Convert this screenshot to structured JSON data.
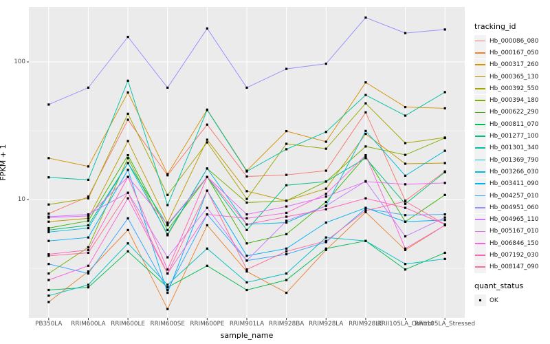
{
  "axes": {
    "y_title": "FPKM + 1",
    "x_title": "sample_name",
    "y_tick_labels": [
      "100",
      "10"
    ]
  },
  "legend": {
    "tracking_title": "tracking_id",
    "quant_title": "quant_status",
    "quant_label": "OK"
  },
  "colors": {
    "panel_background": "#EBEBEB",
    "gridline": "#FFFFFF",
    "axis_text": "#4D4D4D",
    "point": "#000000",
    "legend_key_background": "#F2F2F2"
  },
  "chart_data": {
    "type": "line",
    "title": "",
    "xlabel": "sample_name",
    "ylabel": "FPKM + 1",
    "y_scale": "log10",
    "ylim": [
      1.38,
      251
    ],
    "y_major_gridlines": [
      10,
      100
    ],
    "y_minor_gridlines": [
      3.162,
      31.62
    ],
    "y_ticks": [
      100,
      10
    ],
    "grid": true,
    "legend_position": "right",
    "marker": "black-square",
    "quant_status": "OK",
    "categories": [
      "PB350LA",
      "RRIM600LA",
      "RRIM600LE",
      "RRIM600SE",
      "RRIM600PE",
      "RRIM901LA",
      "RRIM928BA",
      "RRIM928LA",
      "RRIM928LE",
      "RRII105LA_Control",
      "RRII105LA_Stressed"
    ],
    "series": [
      {
        "name": "Hb_000086_080",
        "color": "#F8766D",
        "values": [
          7.9,
          10.5,
          38,
          15,
          35,
          14.7,
          15.1,
          16.2,
          43,
          9.8,
          16
        ]
      },
      {
        "name": "Hb_000167_050",
        "color": "#EA8331",
        "values": [
          1.8,
          3.0,
          6.0,
          1.6,
          6.5,
          3.0,
          2.1,
          4.3,
          8.1,
          4.3,
          6.5
        ]
      },
      {
        "name": "Hb_000317_260",
        "color": "#D89000",
        "values": [
          20,
          17.4,
          60,
          15.3,
          45,
          16.2,
          31.4,
          26.3,
          71,
          47,
          46
        ]
      },
      {
        "name": "Hb_000365_130",
        "color": "#C09B00",
        "values": [
          6.9,
          7.3,
          26.6,
          6.8,
          27.2,
          11.5,
          9.8,
          12,
          30,
          18.2,
          18.4
        ]
      },
      {
        "name": "Hb_000392_550",
        "color": "#A3A500",
        "values": [
          9.2,
          10.2,
          42,
          10.8,
          26,
          10.1,
          25.4,
          23.4,
          50,
          25.7,
          28.2
        ]
      },
      {
        "name": "Hb_000394_180",
        "color": "#7CAE00",
        "values": [
          2.9,
          4.5,
          20,
          5.5,
          16.8,
          9.5,
          9.8,
          13.5,
          24.3,
          21.1,
          28
        ]
      },
      {
        "name": "Hb_000622_290",
        "color": "#39B600",
        "values": [
          6.2,
          7.0,
          21,
          6.0,
          14.6,
          4.8,
          5.6,
          9.6,
          20.7,
          6.9,
          10.8
        ]
      },
      {
        "name": "Hb_000811_070",
        "color": "#00BB4E",
        "values": [
          2.2,
          2.3,
          4.2,
          2.3,
          3.3,
          2.2,
          2.6,
          4.4,
          5.0,
          3.1,
          4.1
        ]
      },
      {
        "name": "Hb_001277_100",
        "color": "#00BF7D",
        "values": [
          6.0,
          6.5,
          18.4,
          6.5,
          14.6,
          6.0,
          12.7,
          13.5,
          20,
          9.3,
          15.8
        ]
      },
      {
        "name": "Hb_001301_340",
        "color": "#00C1A3",
        "values": [
          14.5,
          13.9,
          73,
          9.1,
          44.7,
          16,
          23.2,
          31,
          57.5,
          40.7,
          60.3
        ]
      },
      {
        "name": "Hb_001369_790",
        "color": "#00BFC4",
        "values": [
          2.0,
          2.4,
          4.8,
          2.4,
          4.4,
          2.5,
          2.9,
          5.3,
          5.0,
          3.4,
          3.7
        ]
      },
      {
        "name": "Hb_003266_030",
        "color": "#00BADE",
        "values": [
          5.8,
          6.2,
          18.4,
          5.6,
          16.8,
          6.6,
          6.8,
          9.0,
          31.5,
          14.9,
          22.6
        ]
      },
      {
        "name": "Hb_003411_090",
        "color": "#00B0F6",
        "values": [
          5.0,
          5.3,
          16.4,
          2.1,
          11.6,
          3.9,
          4.4,
          6.8,
          8.7,
          6.9,
          7.1
        ]
      },
      {
        "name": "Hb_004257_010",
        "color": "#35A2FF",
        "values": [
          3.4,
          2.9,
          7.3,
          2.2,
          7.8,
          3.6,
          4.0,
          4.9,
          8.6,
          7.7,
          7.8
        ]
      },
      {
        "name": "Hb_004951_060",
        "color": "#9590FF",
        "values": [
          49,
          65,
          152,
          65,
          175,
          65,
          89,
          97,
          210,
          162,
          172
        ]
      },
      {
        "name": "Hb_004965_110",
        "color": "#C77CFF",
        "values": [
          7.5,
          7.8,
          11.2,
          3.8,
          8.7,
          3.6,
          7.0,
          9.0,
          13.6,
          5.4,
          7.4
        ]
      },
      {
        "name": "Hb_005167_010",
        "color": "#E76BF3",
        "values": [
          7.4,
          7.6,
          14.6,
          6.6,
          14.6,
          7.8,
          8.9,
          10.5,
          13.5,
          12.9,
          13.2
        ]
      },
      {
        "name": "Hb_006846_150",
        "color": "#FA62DB",
        "values": [
          2.6,
          3.3,
          10.2,
          2.9,
          7.8,
          7.3,
          8.0,
          11,
          21,
          4.4,
          6.5
        ]
      },
      {
        "name": "Hb_007192_030",
        "color": "#FF62BC",
        "values": [
          4.0,
          4.3,
          14.6,
          3.1,
          14.6,
          6.6,
          7.5,
          8.5,
          10.2,
          8.7,
          6.6
        ]
      },
      {
        "name": "Hb_008147_090",
        "color": "#FF6A98",
        "values": [
          3.9,
          4.1,
          11.2,
          2.9,
          11.6,
          3.1,
          4.2,
          5.0,
          8.3,
          9.7,
          6.6
        ]
      }
    ]
  }
}
